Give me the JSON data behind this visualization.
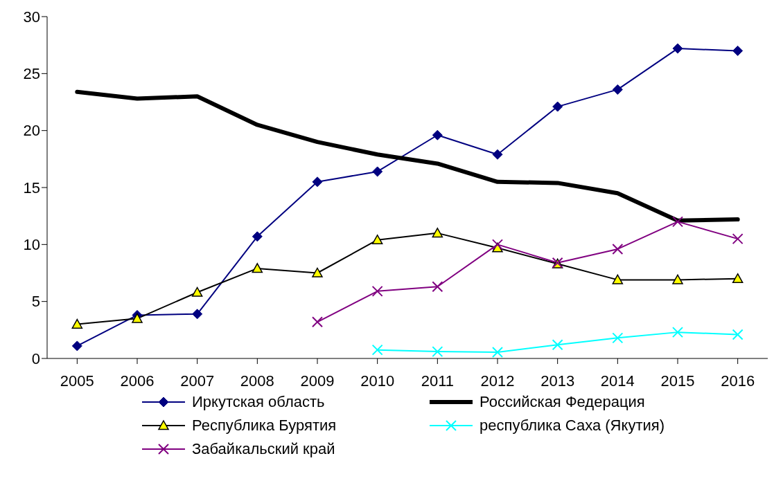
{
  "chart_data": {
    "type": "line",
    "categories": [
      "2005",
      "2006",
      "2007",
      "2008",
      "2009",
      "2010",
      "2011",
      "2012",
      "2013",
      "2014",
      "2015",
      "2016"
    ],
    "ylim": [
      0,
      30
    ],
    "yticks": [
      0,
      5,
      10,
      15,
      20,
      25,
      30
    ],
    "grid": false,
    "legend": "bottom",
    "series": [
      {
        "name": "Иркутская область",
        "color": "#000080",
        "marker": "diamond",
        "values": [
          1.1,
          3.8,
          3.9,
          10.7,
          15.5,
          16.4,
          19.6,
          17.9,
          22.1,
          23.6,
          27.2,
          27.0
        ]
      },
      {
        "name": "Российская Федерация",
        "color": "#000000",
        "marker": "none",
        "values": [
          23.4,
          22.8,
          23.0,
          20.5,
          19.0,
          17.9,
          17.1,
          15.5,
          15.4,
          14.5,
          12.1,
          12.2
        ]
      },
      {
        "name": "Республика Бурятия",
        "color": "#000000",
        "marker": "triangle",
        "colors": [
          "#ffff00",
          "#ffff00",
          "#ffff00",
          "#ffff00",
          "#ffff00",
          "#ffff00",
          "#ffff00",
          "#ffff00",
          "#ffff00",
          "#ffff00",
          "#ffff00",
          "#ffff00"
        ],
        "values": [
          3.0,
          3.5,
          5.8,
          7.9,
          7.5,
          10.4,
          11.0,
          9.7,
          8.3,
          6.9,
          6.9,
          7.0
        ]
      },
      {
        "name": "республика Саха (Якутия)",
        "color": "#00ffff",
        "marker": "cross",
        "values": [
          null,
          null,
          null,
          null,
          null,
          0.75,
          0.6,
          0.55,
          1.2,
          1.8,
          2.3,
          2.1
        ]
      },
      {
        "name": "Забайкальский край",
        "color": "#800080",
        "marker": "cross",
        "values": [
          null,
          null,
          null,
          null,
          3.2,
          5.9,
          6.3,
          10.0,
          8.4,
          9.6,
          12.0,
          10.5
        ]
      }
    ]
  }
}
